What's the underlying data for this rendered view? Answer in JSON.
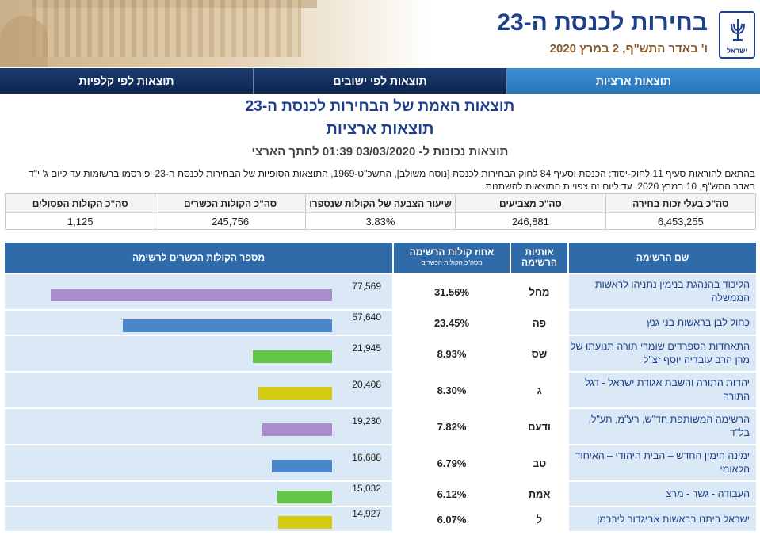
{
  "header": {
    "title": "בחירות לכנסת ה-23",
    "date": "ו' באדר התש\"ף, 2 במרץ 2020",
    "emblem_label": "ישראל"
  },
  "nav": {
    "tabs": [
      {
        "label": "תוצאות ארציות",
        "active": true
      },
      {
        "label": "תוצאות לפי ישובים",
        "active": false
      },
      {
        "label": "תוצאות לפי קלפיות",
        "active": false
      }
    ]
  },
  "headline": {
    "main": "תוצאות האמת של הבחירות לכנסת ה-23",
    "sub": "תוצאות ארציות",
    "updated": "תוצאות נכונות ל- 03/03/2020 01:39 לחתך הארצי"
  },
  "note": "בהתאם להוראות סעיף 11 לחוק-יסוד: הכנסת וסעיף 84 לחוק הבחירות לכנסת [נוסח משולב], התשכ\"ט-1969, התוצאות הסופיות של הבחירות לכנסת ה-23 יפורסמו ברשומות עד ליום ג' י\"ד באדר התש\"ף, 10 במרץ 2020. עד ליום זה צפויות התוצאות להשתנות.",
  "summary": [
    {
      "label": "סה\"כ בעלי זכות בחירה",
      "value": "6,453,255"
    },
    {
      "label": "סה\"כ מצביעים",
      "value": "246,881"
    },
    {
      "label": "שיעור הצבעה של הקולות שנספרו",
      "value": "3.83%"
    },
    {
      "label": "סה\"כ הקולות הכשרים",
      "value": "245,756"
    },
    {
      "label": "סה\"כ הקולות הפסולים",
      "value": "1,125"
    }
  ],
  "results_header": {
    "name": "שם הרשימה",
    "letters": "אותיות הרשימה",
    "pct": "אחוז קולות הרשימה",
    "pct_sub": "מסה\"כ הקולות הכשרים",
    "votes": "מספר הקולות הכשרים לרשימה"
  },
  "max_votes": 77569,
  "rows": [
    {
      "name": "הליכוד בהנהגת בנימין נתניהו לראשות הממשלה",
      "letters": "מחל",
      "pct": "31.56%",
      "votes": 77569,
      "votes_label": "77,569",
      "color": "#a98ecb"
    },
    {
      "name": "כחול לבן בראשות בני גנץ",
      "letters": "פה",
      "pct": "23.45%",
      "votes": 57640,
      "votes_label": "57,640",
      "color": "#4a87c8"
    },
    {
      "name": "התאחדות הספרדים שומרי תורה תנועתו של מרן הרב עובדיה יוסף זצ\"ל",
      "letters": "שס",
      "pct": "8.93%",
      "votes": 21945,
      "votes_label": "21,945",
      "color": "#62c545"
    },
    {
      "name": "יהדות התורה והשבת אגודת ישראל - דגל התורה",
      "letters": "ג",
      "pct": "8.30%",
      "votes": 20408,
      "votes_label": "20,408",
      "color": "#d4cc10"
    },
    {
      "name": "הרשימה המשותפת חד\"ש, רע\"מ, תע\"ל, בל\"ד",
      "letters": "ודעם",
      "pct": "7.82%",
      "votes": 19230,
      "votes_label": "19,230",
      "color": "#a98ecb"
    },
    {
      "name": "ימינה הימין החדש – הבית היהודי – האיחוד הלאומי",
      "letters": "טב",
      "pct": "6.79%",
      "votes": 16688,
      "votes_label": "16,688",
      "color": "#4a87c8"
    },
    {
      "name": "העבודה - גשר - מרצ",
      "letters": "אמת",
      "pct": "6.12%",
      "votes": 15032,
      "votes_label": "15,032",
      "color": "#62c545"
    },
    {
      "name": "ישראל ביתנו בראשות אביגדור ליברמן",
      "letters": "ל",
      "pct": "6.07%",
      "votes": 14927,
      "votes_label": "14,927",
      "color": "#d4cc10"
    }
  ]
}
